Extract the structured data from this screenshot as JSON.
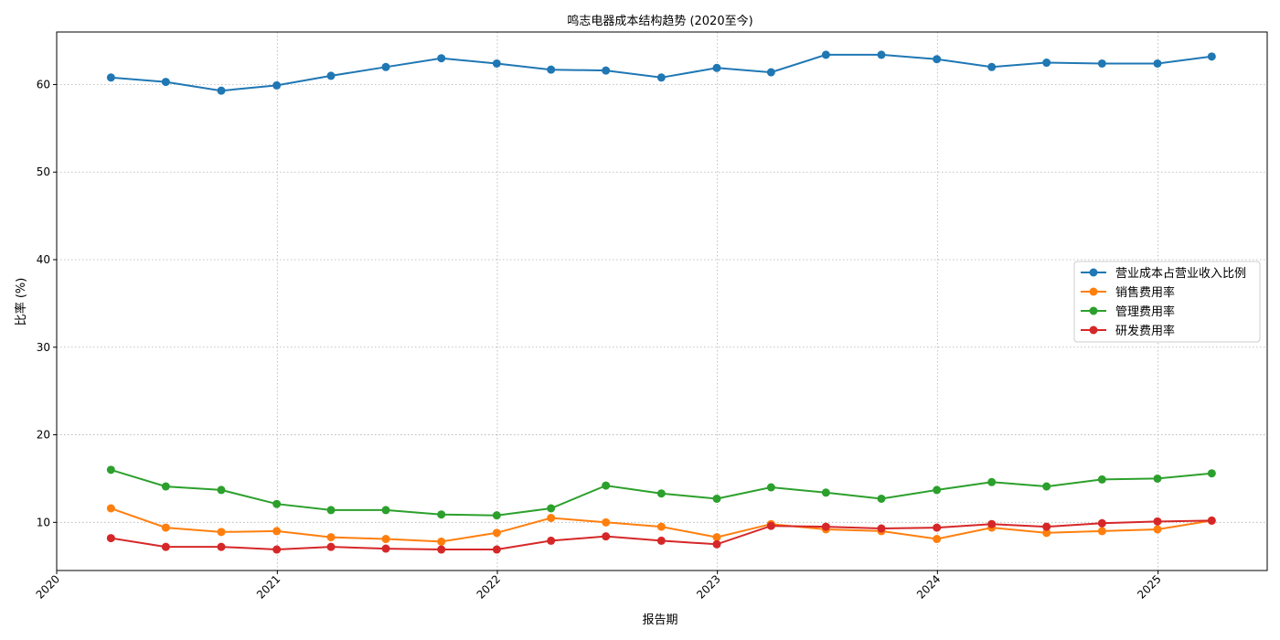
{
  "chart_data": {
    "type": "line",
    "title": "鸣志电器成本结构趋势 (2020至今)",
    "xlabel": "报告期",
    "ylabel": "比率 (%)",
    "x_ticks": [
      "2020",
      "2021",
      "2022",
      "2023",
      "2024",
      "2025"
    ],
    "y_ticks": [
      10,
      20,
      30,
      40,
      50,
      60
    ],
    "xlim": [
      "2020-01-01",
      "2025-07-01"
    ],
    "ylim": [
      4.5,
      66
    ],
    "grid": true,
    "legend": "center-right",
    "x": [
      "2020-03-31",
      "2020-06-30",
      "2020-09-30",
      "2020-12-31",
      "2021-03-31",
      "2021-06-30",
      "2021-09-30",
      "2021-12-31",
      "2022-03-31",
      "2022-06-30",
      "2022-09-30",
      "2022-12-31",
      "2023-03-31",
      "2023-06-30",
      "2023-09-30",
      "2023-12-31",
      "2024-03-31",
      "2024-06-30",
      "2024-09-30",
      "2024-12-31",
      "2025-03-31"
    ],
    "series": [
      {
        "name": "营业成本占营业收入比例",
        "color": "#1f77b4",
        "values": [
          60.8,
          60.3,
          59.3,
          59.9,
          61.0,
          62.0,
          63.0,
          62.4,
          61.7,
          61.6,
          60.8,
          61.9,
          61.4,
          63.4,
          63.4,
          62.9,
          62.0,
          62.5,
          62.4,
          62.4,
          63.2
        ]
      },
      {
        "name": "销售费用率",
        "color": "#ff7f0e",
        "values": [
          11.6,
          9.4,
          8.9,
          9.0,
          8.3,
          8.1,
          7.8,
          8.8,
          10.5,
          10.0,
          9.5,
          8.3,
          9.8,
          9.2,
          9.0,
          8.1,
          9.4,
          8.8,
          9.0,
          9.2,
          10.2
        ]
      },
      {
        "name": "管理费用率",
        "color": "#2ca02c",
        "values": [
          16.0,
          14.1,
          13.7,
          12.1,
          11.4,
          11.4,
          10.9,
          10.8,
          11.6,
          14.2,
          13.3,
          12.7,
          14.0,
          13.4,
          12.7,
          13.7,
          14.6,
          14.1,
          14.9,
          15.0,
          15.6
        ]
      },
      {
        "name": "研发费用率",
        "color": "#d62728",
        "values": [
          8.2,
          7.2,
          7.2,
          6.9,
          7.2,
          7.0,
          6.9,
          6.9,
          7.9,
          8.4,
          7.9,
          7.5,
          9.6,
          9.5,
          9.3,
          9.4,
          9.8,
          9.5,
          9.9,
          10.1,
          10.2
        ]
      }
    ]
  }
}
